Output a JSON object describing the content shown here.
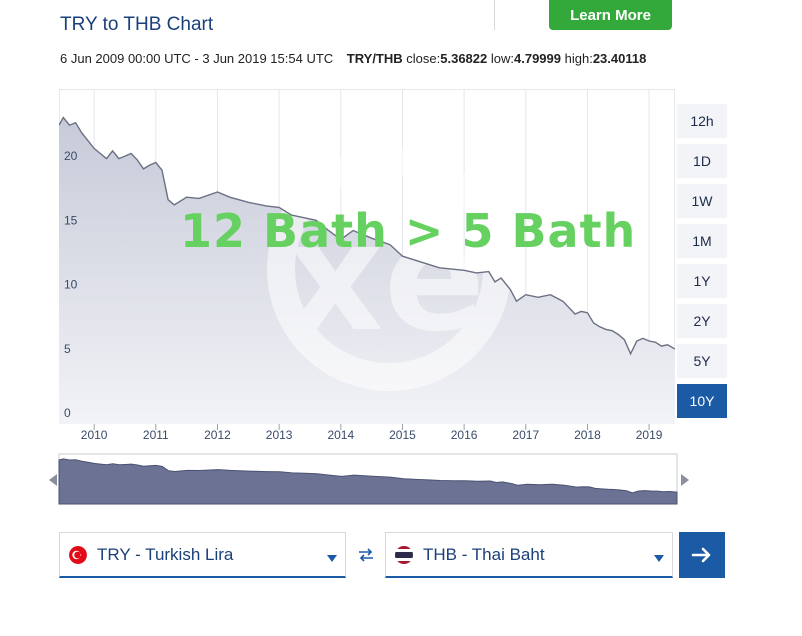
{
  "header": {
    "title": "TRY to THB Chart",
    "learn_more_label": "Learn More"
  },
  "info": {
    "date_range": "6 Jun 2009 00:00 UTC - 3 Jun 2019 15:54 UTC",
    "pair": "TRY/THB",
    "close_label": "close:",
    "close_value": "5.36822",
    "low_label": "low:",
    "low_value": "4.79999",
    "high_label": "high:",
    "high_value": "23.40118"
  },
  "overlay_text": "12 Bath > 5 Bath",
  "range_buttons": [
    "12h",
    "1D",
    "1W",
    "1M",
    "1Y",
    "2Y",
    "5Y",
    "10Y"
  ],
  "active_range": "10Y",
  "selectors": {
    "from": {
      "label": "TRY - Turkish Lira",
      "flag": "turkey-flag-icon"
    },
    "to": {
      "label": "THB - Thai Baht",
      "flag": "thailand-flag-icon"
    },
    "swap_icon": "swap-arrows-icon",
    "go_icon": "arrow-right-icon"
  },
  "colors": {
    "accent": "#1b5ba6",
    "title": "#1b3f7a",
    "learn_more": "#33a83b",
    "overlay_text": "#66d160",
    "line": "#6b7183"
  },
  "chart_data": {
    "type": "area",
    "title": "",
    "xlabel": "",
    "ylabel": "",
    "ylim": [
      0,
      25
    ],
    "xlim": [
      2009.43,
      2019.42
    ],
    "yticks": [
      0,
      5,
      10,
      15,
      20
    ],
    "xticks": [
      2010,
      2011,
      2012,
      2013,
      2014,
      2015,
      2016,
      2017,
      2018,
      2019
    ],
    "grid": true,
    "x": [
      2009.43,
      2009.5,
      2009.6,
      2009.7,
      2009.8,
      2009.9,
      2010.0,
      2010.1,
      2010.2,
      2010.3,
      2010.4,
      2010.5,
      2010.6,
      2010.7,
      2010.8,
      2010.9,
      2011.0,
      2011.1,
      2011.2,
      2011.3,
      2011.5,
      2011.7,
      2012.0,
      2012.2,
      2012.5,
      2012.8,
      2013.0,
      2013.2,
      2013.4,
      2013.6,
      2013.8,
      2014.0,
      2014.2,
      2014.5,
      2014.8,
      2015.0,
      2015.2,
      2015.4,
      2015.6,
      2015.8,
      2016.0,
      2016.2,
      2016.4,
      2016.5,
      2016.6,
      2016.75,
      2016.85,
      2017.0,
      2017.2,
      2017.4,
      2017.6,
      2017.8,
      2017.9,
      2018.0,
      2018.1,
      2018.2,
      2018.3,
      2018.4,
      2018.5,
      2018.6,
      2018.7,
      2018.8,
      2018.9,
      2019.0,
      2019.1,
      2019.2,
      2019.3,
      2019.42
    ],
    "series": [
      {
        "values": [
          22.8,
          23.4,
          22.8,
          23.0,
          22.2,
          21.6,
          21.0,
          20.6,
          20.2,
          20.8,
          20.2,
          20.4,
          20.6,
          20.1,
          19.4,
          19.7,
          19.9,
          19.3,
          17.0,
          16.6,
          17.2,
          17.1,
          17.6,
          17.2,
          16.8,
          16.5,
          16.4,
          15.8,
          15.6,
          15.4,
          14.6,
          13.9,
          14.6,
          14.0,
          13.5,
          12.6,
          12.3,
          12.0,
          11.7,
          11.6,
          11.5,
          11.3,
          11.4,
          10.6,
          10.9,
          10.0,
          9.1,
          9.6,
          9.4,
          9.6,
          9.1,
          8.1,
          8.3,
          8.2,
          7.4,
          7.1,
          6.9,
          6.8,
          6.5,
          6.1,
          5.0,
          6.0,
          6.2,
          6.0,
          5.9,
          5.6,
          5.7,
          5.37
        ]
      }
    ]
  }
}
